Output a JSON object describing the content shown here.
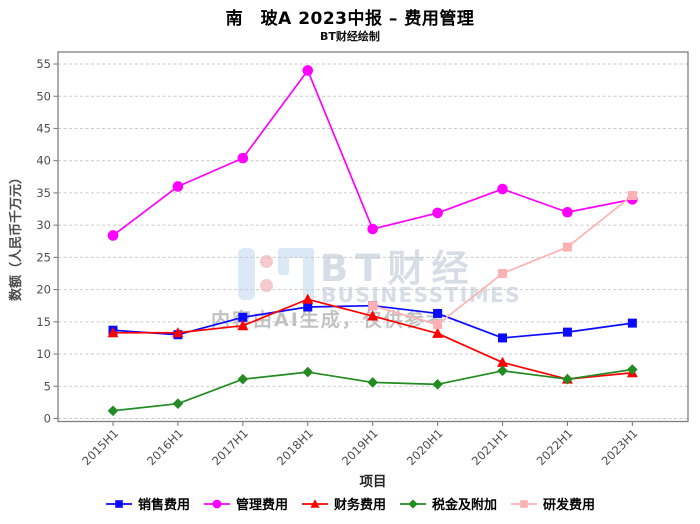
{
  "title": "南　玻A 2023中报 – 费用管理",
  "subtitle": "BT财经绘制",
  "watermark": {
    "brand": "BT财经",
    "brand_sub": "BUSINESSTIMES",
    "ai_note": "内容由AI生成，仅供参考"
  },
  "chart_data": {
    "type": "line",
    "title": "南　玻A 2023中报 – 费用管理",
    "xlabel": "项目",
    "ylabel": "数额（人民币千万元）",
    "categories": [
      "2015H1",
      "2016H1",
      "2017H1",
      "2018H1",
      "2019H1",
      "2020H1",
      "2021H1",
      "2022H1",
      "2023H1"
    ],
    "series": [
      {
        "name": "销售费用",
        "color": "#0a0aff",
        "marker": "square",
        "values": [
          13.7,
          13.0,
          15.7,
          17.3,
          17.5,
          16.3,
          12.5,
          13.4,
          14.8
        ]
      },
      {
        "name": "管理费用",
        "color": "#ff00ff",
        "marker": "circle",
        "values": [
          28.4,
          36.0,
          40.4,
          54.0,
          29.4,
          31.9,
          35.6,
          32.0,
          34.0
        ]
      },
      {
        "name": "财务费用",
        "color": "#ff0000",
        "marker": "triangle",
        "values": [
          13.3,
          13.3,
          14.4,
          18.5,
          15.9,
          13.2,
          8.7,
          6.1,
          7.1
        ]
      },
      {
        "name": "税金及附加",
        "color": "#228b22",
        "marker": "diamond",
        "values": [
          1.2,
          2.3,
          6.1,
          7.2,
          5.6,
          5.3,
          7.4,
          6.1,
          7.6
        ]
      },
      {
        "name": "研发费用",
        "color": "#ffb1b1",
        "marker": "square",
        "values": [
          null,
          null,
          null,
          null,
          17.5,
          14.6,
          22.5,
          26.6,
          34.6
        ]
      }
    ],
    "yticks": [
      0,
      5,
      10,
      15,
      20,
      25,
      30,
      35,
      40,
      45,
      50,
      55
    ],
    "ylim": [
      0,
      57
    ],
    "grid": true,
    "legend_position": "bottom"
  }
}
